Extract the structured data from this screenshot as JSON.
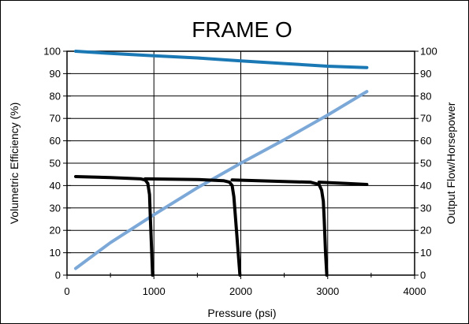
{
  "chart_data": {
    "type": "line",
    "title": "FRAME O",
    "xlabel": "Pressure (psi)",
    "ylabel": "Volumetric Efficiency  (%)",
    "ylabel_right": "Output Flow/Horsepower",
    "xlim": [
      0,
      4000
    ],
    "ylim": [
      0,
      100
    ],
    "xticks": [
      0,
      1000,
      2000,
      3000,
      4000
    ],
    "yticks": [
      0,
      10,
      20,
      30,
      40,
      50,
      60,
      70,
      80,
      90,
      100
    ],
    "grid": true,
    "legend": "none",
    "series": [
      {
        "color": "#1a78b4",
        "width": 4,
        "x": [
          100,
          500,
          1000,
          1500,
          2000,
          2500,
          3000,
          3450
        ],
        "y": [
          100,
          99,
          98,
          97,
          95.7,
          94.5,
          93.3,
          92.7
        ]
      },
      {
        "color": "#7ca8d8",
        "width": 4,
        "x": [
          100,
          500,
          1000,
          1500,
          2000,
          2500,
          3000,
          3450
        ],
        "y": [
          3,
          14.5,
          27,
          39,
          50,
          60.5,
          71.5,
          82
        ]
      },
      {
        "color": "#000000",
        "width": 4,
        "x": [
          100,
          500,
          850,
          900,
          930,
          950,
          960,
          975,
          985
        ],
        "y": [
          44,
          43.6,
          43,
          42.5,
          41,
          36,
          25,
          10,
          0
        ]
      },
      {
        "color": "#000000",
        "width": 4,
        "x": [
          900,
          1500,
          1800,
          1870,
          1900,
          1920,
          1940,
          1970,
          1990
        ],
        "y": [
          43,
          42.7,
          42.2,
          41.5,
          40,
          35,
          25,
          10,
          0
        ]
      },
      {
        "color": "#000000",
        "width": 4,
        "x": [
          1900,
          2500,
          2800,
          2900,
          2930,
          2950,
          2960,
          2975,
          2990
        ],
        "y": [
          42.5,
          41.8,
          41.5,
          40.5,
          38,
          33,
          25,
          10,
          0
        ]
      },
      {
        "color": "#000000",
        "width": 4,
        "x": [
          2900,
          3200,
          3450
        ],
        "y": [
          41.5,
          41,
          40.5
        ]
      }
    ]
  }
}
